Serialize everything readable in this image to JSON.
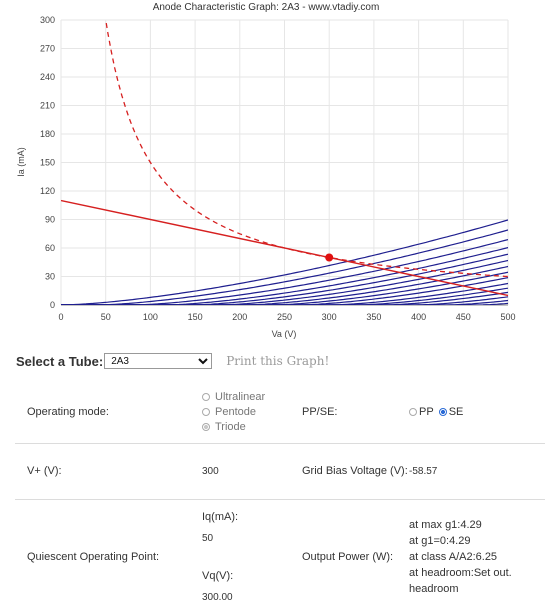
{
  "chart_data": {
    "type": "line",
    "title": "Anode Characteristic Graph: 2A3 - www.vtadiy.com",
    "xlabel": "Va (V)",
    "ylabel": "Ia (mA)",
    "xlim": [
      0,
      500
    ],
    "ylim": [
      0,
      300
    ],
    "xticks": [
      0,
      50,
      100,
      150,
      200,
      250,
      300,
      350,
      400,
      450,
      500
    ],
    "yticks": [
      0,
      30,
      60,
      90,
      120,
      150,
      180,
      210,
      240,
      270,
      300
    ],
    "grid": true,
    "curves_start_va": [
      0,
      40,
      80,
      115,
      145,
      175,
      205,
      235,
      265,
      300,
      330,
      360,
      395,
      430,
      465
    ],
    "curve_k": 0.008,
    "curve_exp": 1.5,
    "load_line": {
      "x": [
        0,
        500
      ],
      "y": [
        110,
        10
      ],
      "color": "#d62020"
    },
    "max_dissipation": {
      "pd_watts": 15,
      "color": "#d62020",
      "style": "dashed"
    },
    "operating_point": {
      "x": 300,
      "y": 50,
      "color": "#e01010"
    },
    "curve_color": "#1f1f8f"
  },
  "selector": {
    "label": "Select a Tube:",
    "value": "2A3",
    "print_label": "Print this Graph!"
  },
  "operating_mode": {
    "label": "Operating mode:",
    "options": [
      "Ultralinear",
      "Pentode",
      "Triode"
    ]
  },
  "pp_se": {
    "label": "PP/SE:",
    "pp": "PP",
    "se": "SE"
  },
  "vplus": {
    "label": "V+ (V):",
    "value": "300"
  },
  "grid_bias": {
    "label": "Grid Bias Voltage (V):",
    "value": "-58.57"
  },
  "quiescent": {
    "label": "Quiescent Operating Point:",
    "iq_label": "Iq(mA):",
    "iq_value": "50",
    "vq_label": "Vq(V):",
    "vq_value": "300.00"
  },
  "output_power": {
    "label": "Output Power (W):",
    "line1": "at max g1:4.29",
    "line2": "at g1=0:4.29",
    "line3": "at class A/A2:6.25",
    "line4": "at headroom:Set out. headroom"
  }
}
